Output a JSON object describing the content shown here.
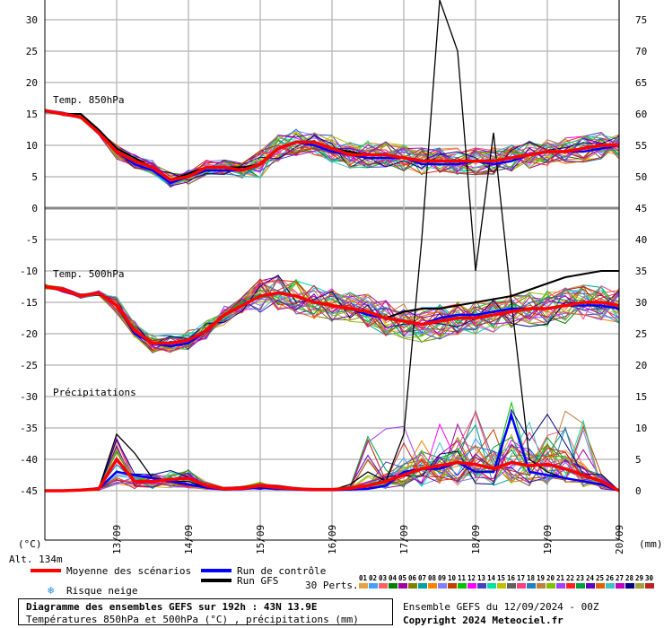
{
  "chart_data": {
    "type": "line",
    "title": "Diagramme des ensembles GEFS sur 192h : 43N 13.9E",
    "subtitle": "Températures 850hPa et 500hPa (°C) , précipitations (mm)",
    "left_axis": {
      "unit": "(°C)",
      "ticks": [
        30,
        25,
        20,
        15,
        10,
        5,
        0,
        -5,
        -10,
        -15,
        -20,
        -25,
        -30,
        -35,
        -40,
        -45
      ],
      "range": [
        -52,
        30
      ]
    },
    "right_axis": {
      "unit": "(mm)",
      "ticks": [
        75,
        70,
        65,
        60,
        55,
        50,
        45,
        40,
        35,
        30,
        25,
        20,
        15,
        10,
        5,
        0
      ]
    },
    "x_ticks": [
      "13/09",
      "14/09",
      "15/09",
      "16/09",
      "17/09",
      "18/09",
      "19/09",
      "20/09"
    ],
    "altitude": "Alt. 134m",
    "panels": {
      "t850": {
        "label": "Temp. 850hPa"
      },
      "t500": {
        "label": "Temp. 500hPa"
      },
      "precip": {
        "label": "Précipitations"
      }
    },
    "x_hours": [
      0,
      6,
      12,
      18,
      24,
      30,
      36,
      42,
      48,
      54,
      60,
      66,
      72,
      78,
      84,
      90,
      96,
      102,
      108,
      114,
      120,
      126,
      132,
      138,
      144,
      150,
      156,
      162,
      168,
      174,
      180,
      186,
      192
    ],
    "series": [
      {
        "name": "Moyenne des scénarios",
        "color": "#ff0000",
        "t850": [
          15.5,
          15,
          14.5,
          12,
          9,
          7.5,
          6.5,
          4.5,
          5,
          6.5,
          6.5,
          6,
          7,
          9.5,
          10.5,
          10.5,
          9.5,
          8.5,
          8.5,
          8.5,
          8,
          7.5,
          7.5,
          7.5,
          7.5,
          7.5,
          8,
          8.5,
          9,
          9,
          9.5,
          10,
          10
        ],
        "t500": [
          -12.5,
          -13,
          -14,
          -13.5,
          -15.5,
          -19.5,
          -21.5,
          -21.5,
          -21,
          -19.5,
          -17,
          -15.5,
          -14,
          -13.5,
          -14,
          -15,
          -15.5,
          -16,
          -16.5,
          -17.5,
          -18,
          -18.5,
          -18,
          -17.5,
          -17.5,
          -17,
          -16.5,
          -16,
          -16,
          -15.5,
          -15,
          -15,
          -15.5
        ],
        "precip": [
          0,
          0,
          0.1,
          0.3,
          5,
          1.5,
          1.5,
          1.8,
          2,
          0.8,
          0.3,
          0.4,
          0.8,
          0.5,
          0.3,
          0.2,
          0.2,
          0.4,
          0.8,
          1.5,
          2.5,
          3.5,
          4,
          4.5,
          4.2,
          3.5,
          4.5,
          4,
          4.2,
          3.5,
          2.5,
          1.5,
          0
        ]
      },
      {
        "name": "Run de contrôle",
        "color": "#0000ff",
        "t850": [
          15.5,
          15,
          14.5,
          12,
          9,
          7,
          6,
          4,
          5,
          6,
          6,
          6,
          7,
          9.5,
          10.5,
          10,
          9,
          8.5,
          8,
          8,
          8,
          7,
          7,
          7,
          7.5,
          7,
          7.5,
          8.5,
          9,
          9,
          9,
          9.5,
          10
        ],
        "t500": [
          -12.5,
          -13,
          -14,
          -13.5,
          -15.5,
          -20,
          -21.5,
          -22,
          -21.5,
          -19.5,
          -17,
          -15.5,
          -14,
          -13.5,
          -14,
          -15,
          -15.5,
          -16,
          -17,
          -17.5,
          -18,
          -18.5,
          -17.5,
          -17,
          -17,
          -16.5,
          -16,
          -16,
          -16,
          -15.5,
          -15.5,
          -15.5,
          -16
        ],
        "precip": [
          0,
          0,
          0.1,
          0.3,
          3,
          2.5,
          2,
          1.5,
          1,
          0.5,
          0.2,
          0.3,
          0.5,
          0.3,
          0.2,
          0.1,
          0.1,
          0.2,
          0.3,
          0.8,
          3,
          3.5,
          3.5,
          4.5,
          3,
          3,
          12,
          3,
          2.5,
          2,
          1.5,
          1,
          0
        ]
      },
      {
        "name": "Run GFS",
        "color": "#000000",
        "t850": [
          15.5,
          15,
          15,
          12.5,
          9.5,
          8,
          6.5,
          4.5,
          5.5,
          6.5,
          6.5,
          6.5,
          7,
          9.5,
          10.5,
          10.5,
          9.5,
          9,
          8.5,
          8.5,
          8,
          7.5,
          7.5,
          7.5,
          7.5,
          7.5,
          8,
          8.5,
          9,
          9,
          9.5,
          10,
          10
        ],
        "t500": [
          -12.5,
          -13,
          -14,
          -13.5,
          -15.5,
          -19.5,
          -21.5,
          -21.5,
          -21,
          -19.5,
          -17,
          -15.5,
          -14,
          -13.5,
          -14,
          -15,
          -15.5,
          -16,
          -16.5,
          -17.5,
          -16.5,
          -16,
          -16,
          -15.5,
          -15,
          -14.5,
          -14,
          -13,
          -12,
          -11,
          -10.5,
          -10,
          -10
        ],
        "precip": [
          0,
          0,
          0.1,
          0.3,
          9,
          6,
          2,
          1.5,
          1.5,
          0.5,
          0.2,
          0.3,
          0.5,
          0.3,
          0.2,
          0.1,
          0.1,
          1,
          3,
          1.5,
          9,
          40,
          90,
          70,
          35,
          57,
          30,
          5,
          3,
          2,
          1.5,
          1,
          0
        ]
      }
    ],
    "members_label": "30 Perts.",
    "members": [
      "01",
      "02",
      "03",
      "04",
      "05",
      "06",
      "07",
      "08",
      "09",
      "10",
      "11",
      "12",
      "13",
      "14",
      "15",
      "16",
      "17",
      "18",
      "19",
      "20",
      "21",
      "22",
      "23",
      "24",
      "25",
      "26",
      "27",
      "28",
      "29",
      "30"
    ],
    "member_colors": [
      "#e8a040",
      "#40a0ff",
      "#ff6060",
      "#008000",
      "#a000a0",
      "#808000",
      "#00a0a0",
      "#ff8000",
      "#8080ff",
      "#c04000",
      "#00c000",
      "#ff00ff",
      "#4040c0",
      "#00e0a0",
      "#c0c000",
      "#606060",
      "#ff4080",
      "#2080c0",
      "#c08040",
      "#80c000",
      "#a040ff",
      "#ff2020",
      "#00a040",
      "#6000c0",
      "#e06000",
      "#40c0c0",
      "#c000c0",
      "#000080",
      "#a0a040",
      "#c02020"
    ],
    "snow_label": "Risque neige",
    "run_info": "Ensemble GEFS du 12/09/2024 - 00Z",
    "copyright": "Copyright 2024 Meteociel.fr"
  }
}
